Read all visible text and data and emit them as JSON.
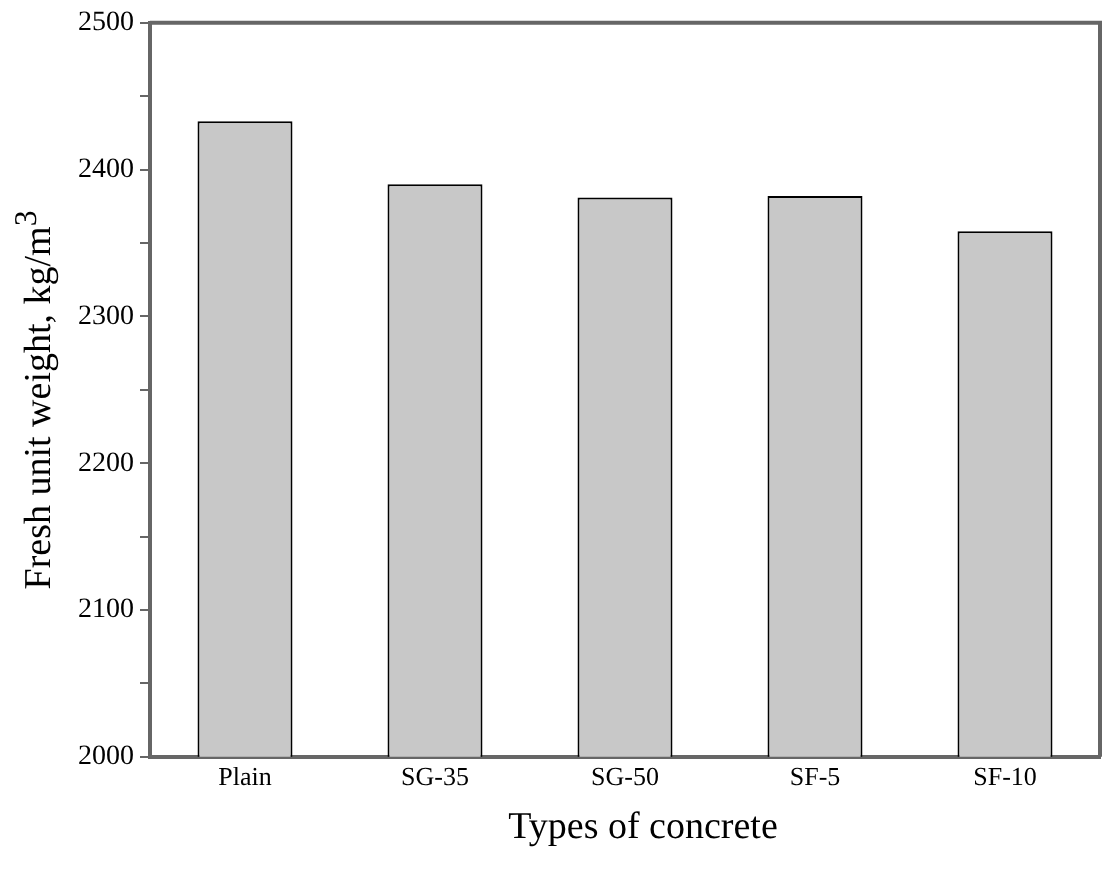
{
  "chart_data": {
    "type": "bar",
    "xlabel": "Types of concrete",
    "ylabel": "Fresh unit weight, kg/m$^{3}$",
    "categories": [
      "Plain",
      "SG-35",
      "SG-50",
      "SF-5",
      "SF-10"
    ],
    "values": [
      2433,
      2390,
      2381,
      2382,
      2358
    ],
    "color": "#c8c8c8",
    "ylim": [
      2000,
      2500
    ],
    "yticks": [
      2000,
      {
        "value": 2050,
        "label": null
      },
      2100,
      {
        "value": 2150,
        "label": null
      },
      2200,
      {
        "value": 2250,
        "label": null
      },
      2300,
      {
        "value": 2350,
        "label": null
      },
      2400,
      {
        "value": 2450,
        "label": null
      },
      2500
    ],
    "grid": false
  }
}
